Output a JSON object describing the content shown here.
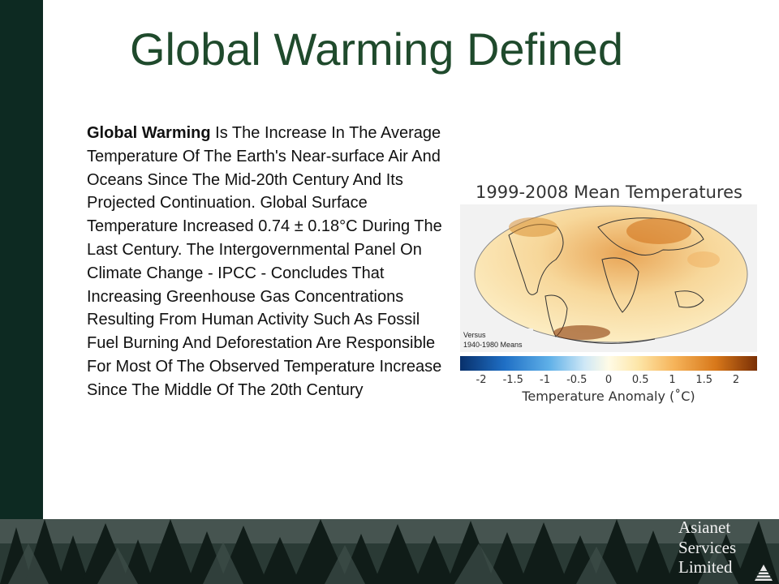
{
  "slide": {
    "title": "Global Warming Defined",
    "body_bold": "Global Warming",
    "body_text": " Is The Increase In The Average Temperature Of The Earth's Near-surface Air And Oceans Since The Mid-20th Century And Its Projected Continuation. Global Surface Temperature Increased 0.74 ± 0.18°C During The Last Century. The Intergovernmental Panel On Climate Change - IPCC - Concludes That Increasing Greenhouse Gas Concentrations Resulting From Human Activity Such As Fossil Fuel Burning And Deforestation Are Responsible For Most Of The Observed Temperature Increase Since The Middle Of The 20th Century"
  },
  "figure": {
    "title": "1999-2008 Mean Temperatures",
    "versus_line1": "Versus",
    "versus_line2": "1940-1980 Means",
    "scale_ticks": [
      "-2",
      "-1.5",
      "-1",
      "-0.5",
      "0",
      "0.5",
      "1",
      "1.5",
      "2"
    ],
    "scale_label": "Temperature Anomaly (˚C)"
  },
  "logo": {
    "line1": "Asianet",
    "line2": "Services",
    "line3": "Limited"
  }
}
